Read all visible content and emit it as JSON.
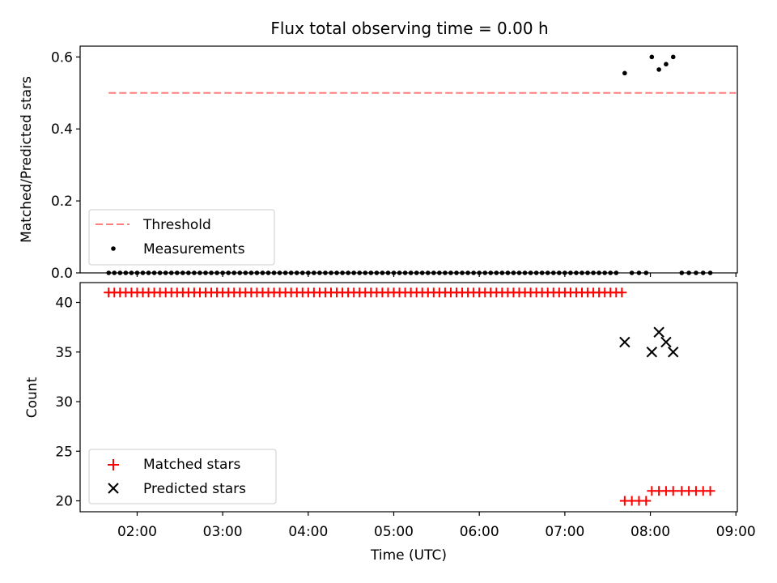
{
  "chart_data": [
    {
      "type": "scatter",
      "title": "Flux total observing time = 0.00 h",
      "xlabel": "",
      "ylabel": "Matched/Predicted stars",
      "ylim": [
        0,
        0.63
      ],
      "yticks": [
        0.0,
        0.2,
        0.4,
        0.6
      ],
      "ytick_labels": [
        "0.0",
        "0.2",
        "0.4",
        "0.6"
      ],
      "xlim_minutes_utc": [
        80,
        541
      ],
      "xticks_minutes_utc": [
        120,
        180,
        240,
        300,
        360,
        420,
        480,
        540
      ],
      "legend_position": "lower left",
      "series": [
        {
          "name": "Threshold",
          "kind": "dashed-line",
          "color": "#ff7f7f",
          "x_minutes_utc": [
            100,
            540
          ],
          "values": [
            0.5,
            0.5
          ]
        },
        {
          "name": "Measurements",
          "kind": "dot",
          "color": "#000000",
          "points": [
            [
              100,
              0
            ],
            [
              104,
              0
            ],
            [
              108,
              0
            ],
            [
              112,
              0
            ],
            [
              116,
              0
            ],
            [
              120,
              0
            ],
            [
              124,
              0
            ],
            [
              128,
              0
            ],
            [
              132,
              0
            ],
            [
              136,
              0
            ],
            [
              140,
              0
            ],
            [
              144,
              0
            ],
            [
              148,
              0
            ],
            [
              152,
              0
            ],
            [
              156,
              0
            ],
            [
              160,
              0
            ],
            [
              164,
              0
            ],
            [
              168,
              0
            ],
            [
              172,
              0
            ],
            [
              176,
              0
            ],
            [
              180,
              0
            ],
            [
              184,
              0
            ],
            [
              188,
              0
            ],
            [
              192,
              0
            ],
            [
              196,
              0
            ],
            [
              200,
              0
            ],
            [
              204,
              0
            ],
            [
              208,
              0
            ],
            [
              212,
              0
            ],
            [
              216,
              0
            ],
            [
              220,
              0
            ],
            [
              224,
              0
            ],
            [
              228,
              0
            ],
            [
              232,
              0
            ],
            [
              236,
              0
            ],
            [
              240,
              0
            ],
            [
              244,
              0
            ],
            [
              248,
              0
            ],
            [
              252,
              0
            ],
            [
              256,
              0
            ],
            [
              260,
              0
            ],
            [
              264,
              0
            ],
            [
              268,
              0
            ],
            [
              272,
              0
            ],
            [
              276,
              0
            ],
            [
              280,
              0
            ],
            [
              284,
              0
            ],
            [
              288,
              0
            ],
            [
              292,
              0
            ],
            [
              296,
              0
            ],
            [
              300,
              0
            ],
            [
              304,
              0
            ],
            [
              308,
              0
            ],
            [
              312,
              0
            ],
            [
              316,
              0
            ],
            [
              320,
              0
            ],
            [
              324,
              0
            ],
            [
              328,
              0
            ],
            [
              332,
              0
            ],
            [
              336,
              0
            ],
            [
              340,
              0
            ],
            [
              344,
              0
            ],
            [
              348,
              0
            ],
            [
              352,
              0
            ],
            [
              356,
              0
            ],
            [
              360,
              0
            ],
            [
              364,
              0
            ],
            [
              368,
              0
            ],
            [
              372,
              0
            ],
            [
              376,
              0
            ],
            [
              380,
              0
            ],
            [
              384,
              0
            ],
            [
              388,
              0
            ],
            [
              392,
              0
            ],
            [
              396,
              0
            ],
            [
              400,
              0
            ],
            [
              404,
              0
            ],
            [
              408,
              0
            ],
            [
              412,
              0
            ],
            [
              416,
              0
            ],
            [
              420,
              0
            ],
            [
              424,
              0
            ],
            [
              428,
              0
            ],
            [
              432,
              0
            ],
            [
              436,
              0
            ],
            [
              440,
              0
            ],
            [
              444,
              0
            ],
            [
              448,
              0
            ],
            [
              452,
              0
            ],
            [
              456,
              0
            ],
            [
              462,
              0.555
            ],
            [
              467,
              0
            ],
            [
              472,
              0
            ],
            [
              477,
              0
            ],
            [
              481,
              0.6
            ],
            [
              486,
              0.565
            ],
            [
              491,
              0.58
            ],
            [
              496,
              0.6
            ],
            [
              502,
              0
            ],
            [
              507,
              0
            ],
            [
              512,
              0
            ],
            [
              517,
              0
            ],
            [
              522,
              0
            ]
          ]
        }
      ]
    },
    {
      "type": "scatter",
      "title": "",
      "xlabel": "Time (UTC)",
      "ylabel": "Count",
      "ylim": [
        18.9,
        42
      ],
      "yticks": [
        20,
        25,
        30,
        35,
        40
      ],
      "ytick_labels": [
        "20",
        "25",
        "30",
        "35",
        "40"
      ],
      "xlim_minutes_utc": [
        80,
        541
      ],
      "xticks_minutes_utc": [
        120,
        180,
        240,
        300,
        360,
        420,
        480,
        540
      ],
      "xtick_labels": [
        "02:00",
        "03:00",
        "04:00",
        "05:00",
        "06:00",
        "07:00",
        "08:00",
        "09:00"
      ],
      "legend_position": "lower left",
      "series": [
        {
          "name": "Matched stars",
          "kind": "plus",
          "color": "#ff0000",
          "points": [
            [
              100,
              41
            ],
            [
              104,
              41
            ],
            [
              108,
              41
            ],
            [
              112,
              41
            ],
            [
              116,
              41
            ],
            [
              120,
              41
            ],
            [
              124,
              41
            ],
            [
              128,
              41
            ],
            [
              132,
              41
            ],
            [
              136,
              41
            ],
            [
              140,
              41
            ],
            [
              144,
              41
            ],
            [
              148,
              41
            ],
            [
              152,
              41
            ],
            [
              156,
              41
            ],
            [
              160,
              41
            ],
            [
              164,
              41
            ],
            [
              168,
              41
            ],
            [
              172,
              41
            ],
            [
              176,
              41
            ],
            [
              180,
              41
            ],
            [
              184,
              41
            ],
            [
              188,
              41
            ],
            [
              192,
              41
            ],
            [
              196,
              41
            ],
            [
              200,
              41
            ],
            [
              204,
              41
            ],
            [
              208,
              41
            ],
            [
              212,
              41
            ],
            [
              216,
              41
            ],
            [
              220,
              41
            ],
            [
              224,
              41
            ],
            [
              228,
              41
            ],
            [
              232,
              41
            ],
            [
              236,
              41
            ],
            [
              240,
              41
            ],
            [
              244,
              41
            ],
            [
              248,
              41
            ],
            [
              252,
              41
            ],
            [
              256,
              41
            ],
            [
              260,
              41
            ],
            [
              264,
              41
            ],
            [
              268,
              41
            ],
            [
              272,
              41
            ],
            [
              276,
              41
            ],
            [
              280,
              41
            ],
            [
              284,
              41
            ],
            [
              288,
              41
            ],
            [
              292,
              41
            ],
            [
              296,
              41
            ],
            [
              300,
              41
            ],
            [
              304,
              41
            ],
            [
              308,
              41
            ],
            [
              312,
              41
            ],
            [
              316,
              41
            ],
            [
              320,
              41
            ],
            [
              324,
              41
            ],
            [
              328,
              41
            ],
            [
              332,
              41
            ],
            [
              336,
              41
            ],
            [
              340,
              41
            ],
            [
              344,
              41
            ],
            [
              348,
              41
            ],
            [
              352,
              41
            ],
            [
              356,
              41
            ],
            [
              360,
              41
            ],
            [
              364,
              41
            ],
            [
              368,
              41
            ],
            [
              372,
              41
            ],
            [
              376,
              41
            ],
            [
              380,
              41
            ],
            [
              384,
              41
            ],
            [
              388,
              41
            ],
            [
              392,
              41
            ],
            [
              396,
              41
            ],
            [
              400,
              41
            ],
            [
              404,
              41
            ],
            [
              408,
              41
            ],
            [
              412,
              41
            ],
            [
              416,
              41
            ],
            [
              420,
              41
            ],
            [
              424,
              41
            ],
            [
              428,
              41
            ],
            [
              432,
              41
            ],
            [
              436,
              41
            ],
            [
              440,
              41
            ],
            [
              444,
              41
            ],
            [
              448,
              41
            ],
            [
              452,
              41
            ],
            [
              456,
              41
            ],
            [
              460,
              41
            ],
            [
              462,
              20
            ],
            [
              467,
              20
            ],
            [
              472,
              20
            ],
            [
              477,
              20
            ],
            [
              481,
              21
            ],
            [
              486,
              21
            ],
            [
              491,
              21
            ],
            [
              496,
              21
            ],
            [
              502,
              21
            ],
            [
              507,
              21
            ],
            [
              512,
              21
            ],
            [
              517,
              21
            ],
            [
              522,
              21
            ]
          ]
        },
        {
          "name": "Predicted stars",
          "kind": "x",
          "color": "#000000",
          "points": [
            [
              462,
              36
            ],
            [
              481,
              35
            ],
            [
              486,
              37
            ],
            [
              491,
              36
            ],
            [
              496,
              35
            ]
          ]
        }
      ]
    }
  ]
}
